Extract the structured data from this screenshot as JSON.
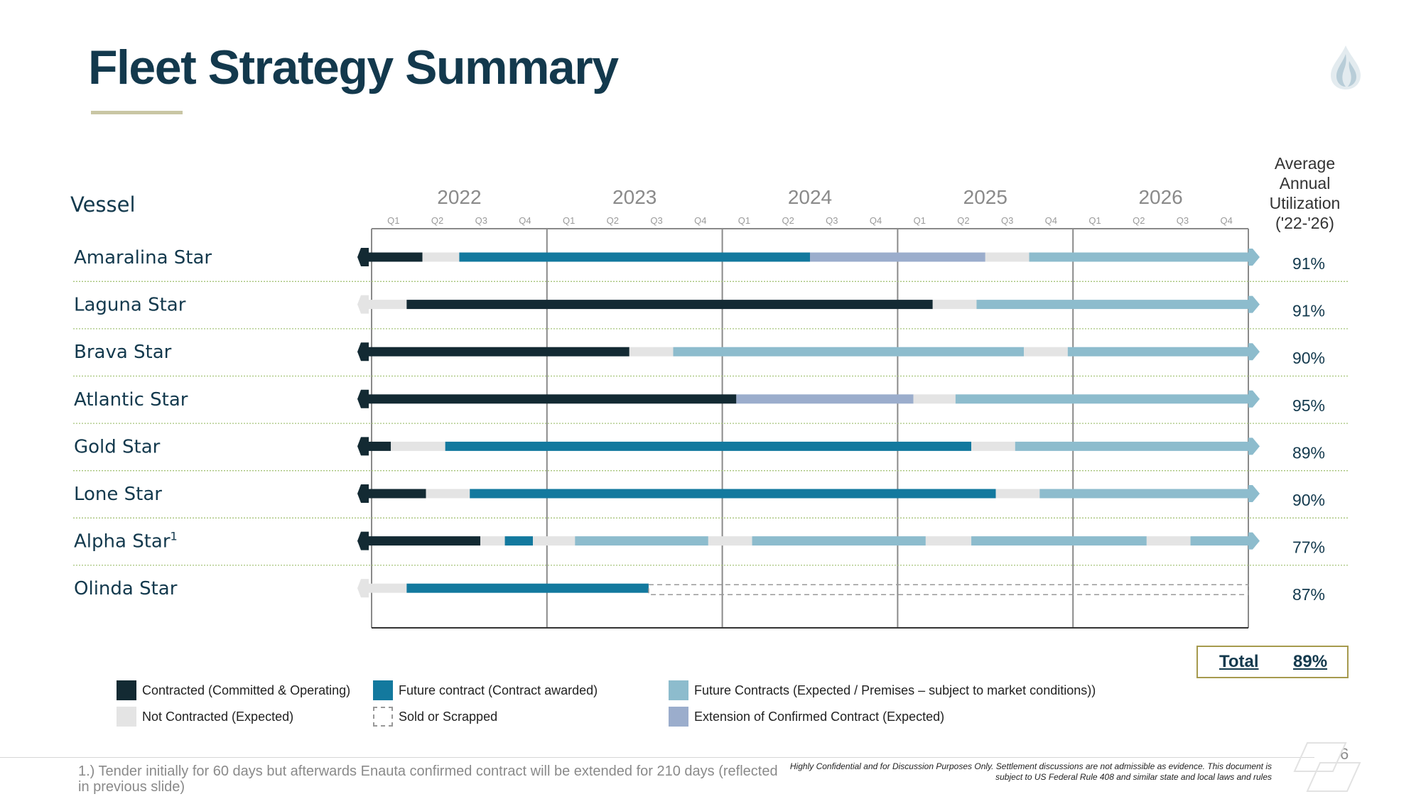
{
  "title": "Fleet Strategy Summary",
  "utilization_header": [
    "Average",
    "Annual",
    "Utilization",
    "('22-'26)"
  ],
  "vessel_header": "Vessel",
  "total": {
    "label": "Total",
    "value": "89%"
  },
  "legend": [
    {
      "label": "Contracted (Committed & Operating)",
      "color": "#132a33",
      "style": "solid"
    },
    {
      "label": "Future contract (Contract awarded)",
      "color": "#13799e",
      "style": "solid"
    },
    {
      "label": "Future Contracts (Expected / Premises – subject to market conditions))",
      "color": "#8dbccd",
      "style": "solid"
    },
    {
      "label": "Not Contracted (Expected)",
      "color": "#e4e4e4",
      "style": "solid"
    },
    {
      "label": "Sold or Scrapped",
      "color": "#999999",
      "style": "dashed"
    },
    {
      "label": "Extension of Confirmed Contract (Expected)",
      "color": "#9badcc",
      "style": "solid"
    }
  ],
  "footnote": "1.) Tender initially for 60 days but afterwards Enauta confirmed contract will be extended for 210 days (reflected in previous slide)",
  "disclaimer": "Highly Confidential and for Discussion Purposes Only. Settlement discussions are not admissible as evidence. This document is subject to US Federal Rule 408 and similar state and local laws and rules",
  "page_number": "6",
  "chart_data": {
    "type": "gantt",
    "time_unit": "quarter",
    "years": [
      "2022",
      "2023",
      "2024",
      "2025",
      "2026"
    ],
    "quarters": [
      "Q1",
      "Q2",
      "Q3",
      "Q4"
    ],
    "status_colors": {
      "contracted": "#132a33",
      "future_awarded": "#13799e",
      "future_expected": "#8dbccd",
      "not_contracted": "#e4e4e4",
      "extension": "#9badcc",
      "sold": "#999999"
    },
    "rows": [
      {
        "vessel": "Amaralina Star",
        "sup": "",
        "utilization": "91%",
        "segments": [
          {
            "start": 2022.0,
            "end": 2022.29,
            "status": "contracted"
          },
          {
            "start": 2022.29,
            "end": 2022.5,
            "status": "not_contracted"
          },
          {
            "start": 2022.5,
            "end": 2024.5,
            "status": "future_awarded"
          },
          {
            "start": 2024.5,
            "end": 2025.5,
            "status": "extension"
          },
          {
            "start": 2025.5,
            "end": 2025.75,
            "status": "not_contracted"
          },
          {
            "start": 2025.75,
            "end": 2027.0,
            "status": "future_expected"
          }
        ]
      },
      {
        "vessel": "Laguna Star",
        "sup": "",
        "utilization": "91%",
        "segments": [
          {
            "start": 2022.0,
            "end": 2022.2,
            "status": "not_contracted"
          },
          {
            "start": 2022.2,
            "end": 2025.2,
            "status": "contracted"
          },
          {
            "start": 2025.2,
            "end": 2025.45,
            "status": "not_contracted"
          },
          {
            "start": 2025.45,
            "end": 2027.0,
            "status": "future_expected"
          }
        ]
      },
      {
        "vessel": "Brava Star",
        "sup": "",
        "utilization": "90%",
        "segments": [
          {
            "start": 2022.0,
            "end": 2023.47,
            "status": "contracted"
          },
          {
            "start": 2023.47,
            "end": 2023.72,
            "status": "not_contracted"
          },
          {
            "start": 2023.72,
            "end": 2025.72,
            "status": "future_expected"
          },
          {
            "start": 2025.72,
            "end": 2025.97,
            "status": "not_contracted"
          },
          {
            "start": 2025.97,
            "end": 2027.0,
            "status": "future_expected"
          }
        ]
      },
      {
        "vessel": "Atlantic Star",
        "sup": "",
        "utilization": "95%",
        "segments": [
          {
            "start": 2022.0,
            "end": 2024.08,
            "status": "contracted"
          },
          {
            "start": 2024.08,
            "end": 2025.09,
            "status": "extension"
          },
          {
            "start": 2025.09,
            "end": 2025.33,
            "status": "not_contracted"
          },
          {
            "start": 2025.33,
            "end": 2027.0,
            "status": "future_expected"
          }
        ]
      },
      {
        "vessel": "Gold Star",
        "sup": "",
        "utilization": "89%",
        "segments": [
          {
            "start": 2022.0,
            "end": 2022.11,
            "status": "contracted"
          },
          {
            "start": 2022.11,
            "end": 2022.42,
            "status": "not_contracted"
          },
          {
            "start": 2022.42,
            "end": 2025.42,
            "status": "future_awarded"
          },
          {
            "start": 2025.42,
            "end": 2025.67,
            "status": "not_contracted"
          },
          {
            "start": 2025.67,
            "end": 2027.0,
            "status": "future_expected"
          }
        ]
      },
      {
        "vessel": "Lone Star",
        "sup": "",
        "utilization": "90%",
        "segments": [
          {
            "start": 2022.0,
            "end": 2022.31,
            "status": "contracted"
          },
          {
            "start": 2022.31,
            "end": 2022.56,
            "status": "not_contracted"
          },
          {
            "start": 2022.56,
            "end": 2025.56,
            "status": "future_awarded"
          },
          {
            "start": 2025.56,
            "end": 2025.81,
            "status": "not_contracted"
          },
          {
            "start": 2025.81,
            "end": 2027.0,
            "status": "future_expected"
          }
        ]
      },
      {
        "vessel": "Alpha Star",
        "sup": "1",
        "utilization": "77%",
        "segments": [
          {
            "start": 2022.0,
            "end": 2022.62,
            "status": "contracted"
          },
          {
            "start": 2022.62,
            "end": 2022.76,
            "status": "not_contracted"
          },
          {
            "start": 2022.76,
            "end": 2022.92,
            "status": "future_awarded"
          },
          {
            "start": 2022.92,
            "end": 2023.16,
            "status": "not_contracted"
          },
          {
            "start": 2023.16,
            "end": 2023.92,
            "status": "future_expected"
          },
          {
            "start": 2023.92,
            "end": 2024.17,
            "status": "not_contracted"
          },
          {
            "start": 2024.17,
            "end": 2025.16,
            "status": "future_expected"
          },
          {
            "start": 2025.16,
            "end": 2025.42,
            "status": "not_contracted"
          },
          {
            "start": 2025.42,
            "end": 2026.42,
            "status": "future_expected"
          },
          {
            "start": 2026.42,
            "end": 2026.67,
            "status": "not_contracted"
          },
          {
            "start": 2026.67,
            "end": 2027.0,
            "status": "future_expected"
          }
        ]
      },
      {
        "vessel": "Olinda Star",
        "sup": "",
        "utilization": "87%",
        "segments": [
          {
            "start": 2022.0,
            "end": 2022.2,
            "status": "not_contracted"
          },
          {
            "start": 2022.2,
            "end": 2023.58,
            "status": "future_awarded"
          },
          {
            "start": 2023.58,
            "end": 2027.0,
            "status": "sold"
          }
        ]
      }
    ]
  }
}
